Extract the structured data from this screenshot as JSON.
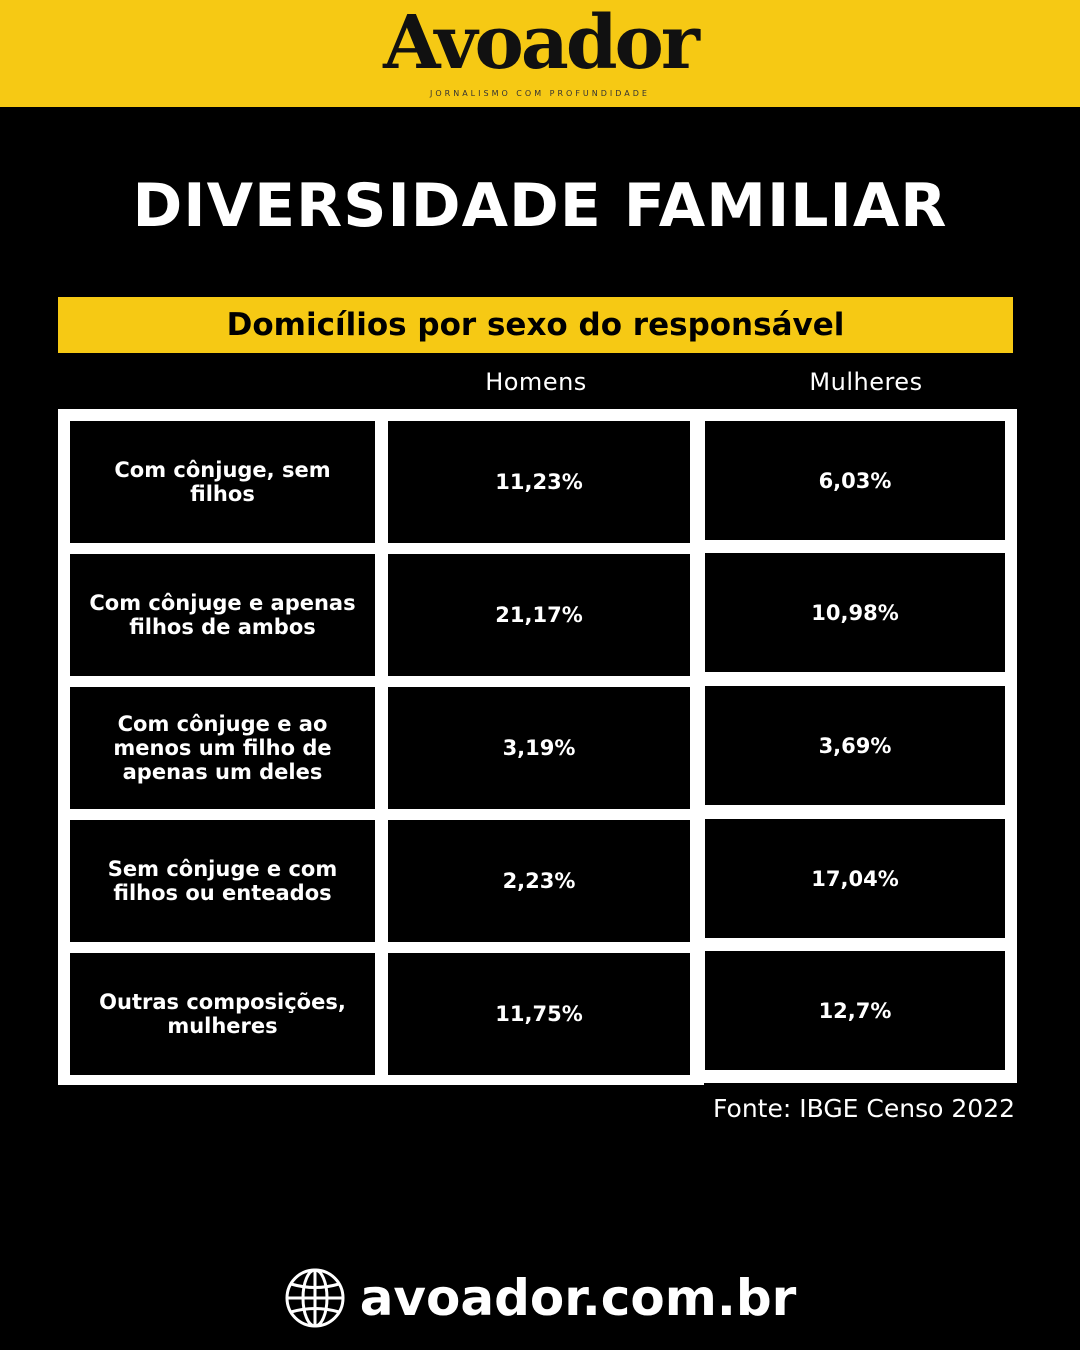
{
  "header": {
    "logo": "Avoador",
    "tagline": "JORNALISMO COM PROFUNDIDADE"
  },
  "title": "DIVERSIDADE FAMILIAR",
  "subtitle": "Domicílios por sexo do responsável",
  "source": "Fonte: IBGE Censo 2022",
  "footer": {
    "url": "avoador.com.br",
    "icon": "globe-icon"
  },
  "colors": {
    "accent": "#f6c914",
    "background": "#000000",
    "text": "#ffffff"
  },
  "chart_data": {
    "type": "table",
    "title": "Domicílios por sexo do responsável",
    "columns": [
      "Homens",
      "Mulheres"
    ],
    "rows": [
      {
        "label": "Com cônjuge, sem filhos",
        "label_lines": [
          "Com cônjuge, sem",
          "filhos"
        ],
        "values": [
          "11,23%",
          "6,03%"
        ]
      },
      {
        "label": "Com cônjuge e apenas filhos de ambos",
        "label_lines": [
          "Com cônjuge e apenas",
          "filhos de ambos"
        ],
        "values": [
          "21,17%",
          "10,98%"
        ]
      },
      {
        "label": "Com cônjuge e ao menos um filho de apenas um deles",
        "label_lines": [
          "Com cônjuge e ao",
          "menos um filho de",
          "apenas um deles"
        ],
        "values": [
          "3,19%",
          "3,69%"
        ]
      },
      {
        "label": "Sem cônjuge e com filhos ou enteados",
        "label_lines": [
          "Sem cônjuge e com",
          "filhos ou enteados"
        ],
        "values": [
          "2,23%",
          "17,04%"
        ]
      },
      {
        "label": "Outras composições, mulheres",
        "label_lines": [
          "Outras composições,",
          "mulheres"
        ],
        "values": [
          "11,75%",
          "12,7%"
        ]
      }
    ],
    "source": "Fonte: IBGE Censo 2022"
  }
}
